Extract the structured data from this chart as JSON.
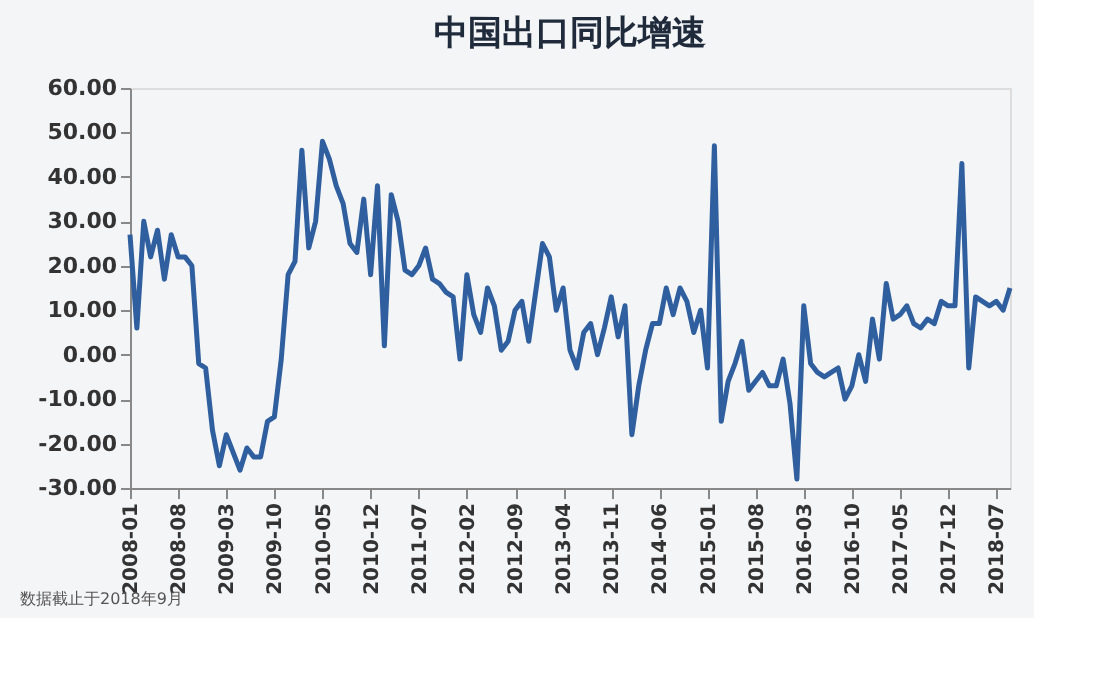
{
  "chart_data": {
    "type": "line",
    "title": "中国出口同比增速",
    "categories": [
      "2008-01",
      null,
      null,
      null,
      null,
      null,
      null,
      "2008-08",
      null,
      null,
      null,
      null,
      null,
      null,
      "2009-03",
      null,
      null,
      null,
      null,
      null,
      null,
      "2009-10",
      null,
      null,
      null,
      null,
      null,
      null,
      "2010-05",
      null,
      null,
      null,
      null,
      null,
      null,
      "2010-12",
      null,
      null,
      null,
      null,
      null,
      null,
      "2011-07",
      null,
      null,
      null,
      null,
      null,
      null,
      "2012-02",
      null,
      null,
      null,
      null,
      null,
      null,
      "2012-09",
      null,
      null,
      null,
      null,
      null,
      null,
      "2013-04",
      null,
      null,
      null,
      null,
      null,
      null,
      "2013-11",
      null,
      null,
      null,
      null,
      null,
      null,
      "2014-06",
      null,
      null,
      null,
      null,
      null,
      null,
      "2015-01",
      null,
      null,
      null,
      null,
      null,
      null,
      "2015-08",
      null,
      null,
      null,
      null,
      null,
      null,
      "2016-03",
      null,
      null,
      null,
      null,
      null,
      null,
      "2016-10",
      null,
      null,
      null,
      null,
      null,
      null,
      "2017-05",
      null,
      null,
      null,
      null,
      null,
      null,
      "2017-12",
      null,
      null,
      null,
      null,
      null,
      null,
      "2018-07",
      null,
      null
    ],
    "series": [
      {
        "color": "#2f5f9e",
        "values": [
          27,
          6,
          30,
          22,
          28,
          17,
          27,
          22,
          22,
          20,
          -2,
          -3,
          -17,
          -25,
          -18,
          -22,
          -26,
          -21,
          -23,
          -23,
          -15,
          -14,
          -1,
          18,
          21,
          46,
          24,
          30,
          48,
          44,
          38,
          34,
          25,
          23,
          35,
          18,
          38,
          2,
          36,
          30,
          19,
          18,
          20,
          24,
          17,
          16,
          14,
          13,
          -1,
          18,
          9,
          5,
          15,
          11,
          1,
          3,
          10,
          12,
          3,
          14,
          25,
          22,
          10,
          15,
          1,
          -3,
          5,
          7,
          0,
          6,
          13,
          4,
          11,
          -18,
          -7,
          1,
          7,
          7,
          15,
          9,
          15,
          12,
          5,
          10,
          -3,
          47,
          -15,
          -6,
          -2,
          3,
          -8,
          -6,
          -4,
          -7,
          -7,
          -1,
          -11,
          -28,
          11,
          -2,
          -4,
          -5,
          -4,
          -3,
          -10,
          -7,
          0,
          -6,
          8,
          -1,
          16,
          8,
          9,
          11,
          7,
          6,
          8,
          7,
          12,
          11,
          11,
          43,
          -3,
          13,
          12,
          11,
          12,
          10,
          15
        ]
      }
    ],
    "ylim": [
      -30,
      60
    ],
    "yticks": [
      {
        "value": -30,
        "label": "-30.00"
      },
      {
        "value": -20,
        "label": "-20.00"
      },
      {
        "value": -10,
        "label": "-10.00"
      },
      {
        "value": 0,
        "label": "0.00"
      },
      {
        "value": 10,
        "label": "10.00"
      },
      {
        "value": 20,
        "label": "20.00"
      },
      {
        "value": 30,
        "label": "30.00"
      },
      {
        "value": 40,
        "label": "40.00"
      },
      {
        "value": 50,
        "label": "50.00"
      },
      {
        "value": 60,
        "label": "60.00"
      }
    ],
    "grid": false,
    "marker": "none",
    "line_style": "solid",
    "annotations": [
      "数据截止于2018年9月"
    ]
  }
}
